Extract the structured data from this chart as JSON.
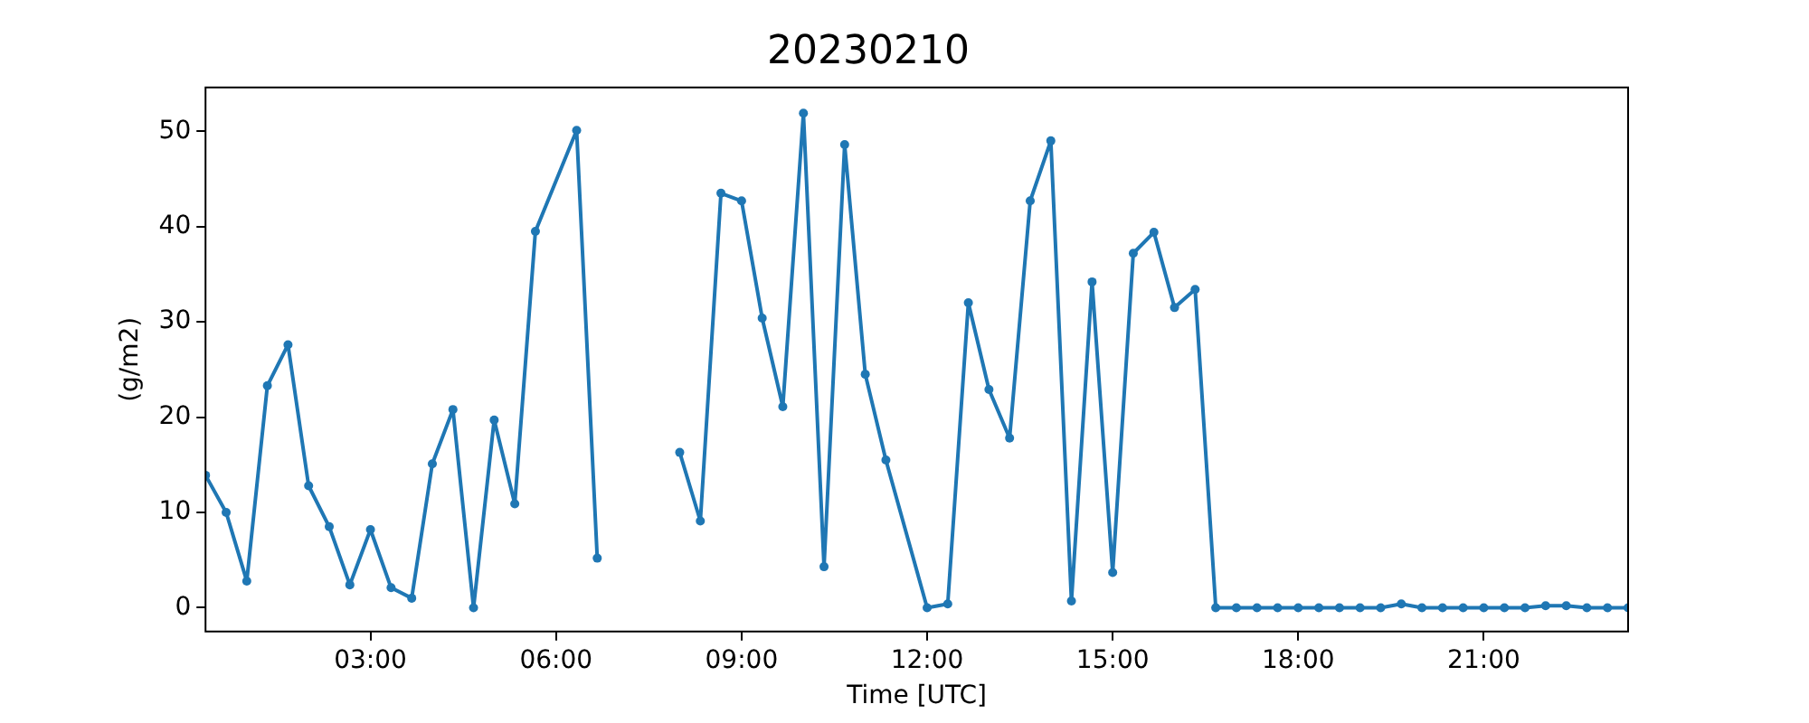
{
  "chart_data": {
    "type": "line",
    "title": "20230210",
    "xlabel": "Time [UTC]",
    "ylabel": "(g/m2)",
    "x": [
      0.3333,
      0.6667,
      1,
      1.3333,
      1.6667,
      2,
      2.3333,
      2.6667,
      3,
      3.3333,
      3.6667,
      4,
      4.3333,
      4.6667,
      5,
      5.3333,
      5.6667,
      6.3333,
      6.6667,
      7,
      7.3333,
      7.6667,
      8,
      8.3333,
      8.6667,
      9,
      9.3333,
      9.6667,
      10,
      10.3333,
      10.6667,
      11,
      11.3333,
      12,
      12.3333,
      12.6667,
      13,
      13.3333,
      13.6667,
      14,
      14.3333,
      14.6667,
      15,
      15.3333,
      15.6667,
      16,
      16.3333,
      16.6667,
      17,
      17.3333,
      17.6667,
      18,
      18.3333,
      18.6667,
      19,
      19.3333,
      19.6667,
      20,
      20.3333,
      20.6667,
      21,
      21.3333,
      21.6667,
      22,
      22.3333,
      22.6667,
      23,
      23.3333
    ],
    "series": [
      {
        "color": "#1f77b4",
        "values": [
          13.9,
          10.0,
          2.8,
          23.3,
          27.6,
          12.8,
          8.5,
          2.4,
          8.2,
          2.1,
          1.0,
          15.1,
          20.8,
          0,
          19.7,
          10.9,
          39.5,
          50.1,
          5.2,
          null,
          null,
          null,
          16.3,
          9.1,
          43.5,
          42.7,
          30.4,
          21.1,
          51.9,
          4.3,
          48.6,
          24.5,
          15.5,
          0,
          0.4,
          32.0,
          22.9,
          17.8,
          42.7,
          49.0,
          0.7,
          34.2,
          3.7,
          37.2,
          39.4,
          31.5,
          33.4,
          0,
          0,
          0,
          0,
          0,
          0,
          0,
          0,
          0,
          0.4,
          0,
          0,
          0,
          0,
          0,
          0,
          0.2,
          0.2,
          0,
          0,
          0
        ]
      }
    ],
    "xlim": [
      0.3333,
      23.3333
    ],
    "xticks": [
      {
        "value": 3,
        "label": "03:00"
      },
      {
        "value": 6,
        "label": "06:00"
      },
      {
        "value": 9,
        "label": "09:00"
      },
      {
        "value": 12,
        "label": "12:00"
      },
      {
        "value": 15,
        "label": "15:00"
      },
      {
        "value": 18,
        "label": "18:00"
      },
      {
        "value": 21,
        "label": "21:00"
      }
    ],
    "ylim": [
      -2.5,
      54.6
    ],
    "yticks": [
      0,
      10,
      20,
      30,
      40,
      50
    ],
    "grid": false,
    "legend": false,
    "marker": "circle",
    "line_style": "solid"
  }
}
